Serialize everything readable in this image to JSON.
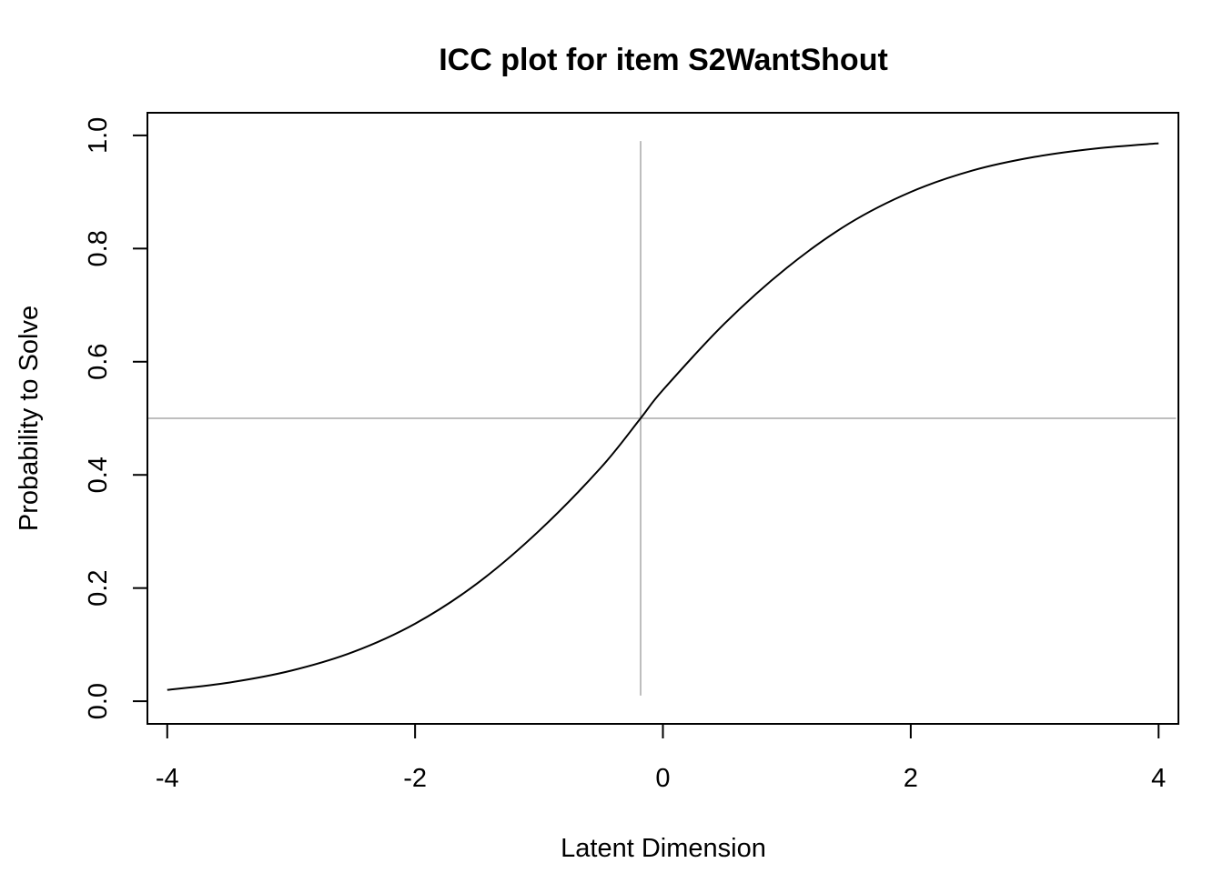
{
  "chart_data": {
    "type": "line",
    "title": "ICC plot for item  S2WantShout",
    "xlabel": "Latent Dimension",
    "ylabel": "Probability to Solve",
    "xlim": [
      -4.16,
      4.16
    ],
    "ylim": [
      -0.04,
      1.04
    ],
    "x_ticks": [
      -4,
      -2,
      0,
      2,
      4
    ],
    "x_tick_labels": [
      "-4",
      "-2",
      "0",
      "2",
      "4"
    ],
    "y_ticks": [
      0.0,
      0.2,
      0.4,
      0.6,
      0.8,
      1.0
    ],
    "y_tick_labels": [
      "0.0",
      "0.2",
      "0.4",
      "0.6",
      "0.8",
      "1.0"
    ],
    "grid": false,
    "legend": "none",
    "item_location": -0.18,
    "reference_probability": 0.5,
    "series": [
      {
        "x": [
          -4,
          -3.5,
          -3,
          -2.5,
          -2,
          -1.5,
          -1,
          -0.5,
          -0.18,
          0,
          0.5,
          1,
          1.5,
          2,
          2.5,
          3,
          3.5,
          4
        ],
        "y": [
          0.02,
          0.033,
          0.054,
          0.087,
          0.137,
          0.208,
          0.301,
          0.413,
          0.5,
          0.55,
          0.668,
          0.766,
          0.844,
          0.9,
          0.938,
          0.962,
          0.977,
          0.986
        ],
        "color": "#000000"
      }
    ],
    "reference_line_color": "#bebebe"
  }
}
